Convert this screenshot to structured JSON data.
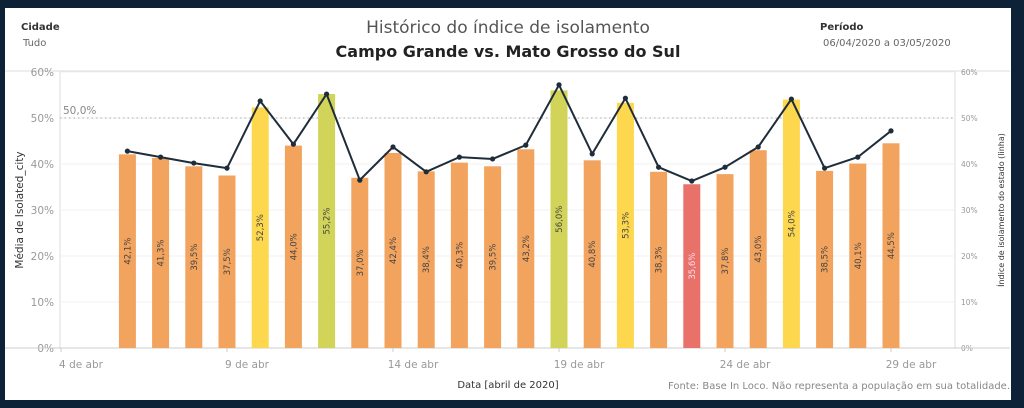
{
  "filters": {
    "cidade_label": "Cidade",
    "cidade_value": "Tudo",
    "periodo_label": "Período",
    "periodo_value": "06/04/2020 a 03/05/2020"
  },
  "chart_data": {
    "type": "bar",
    "title": "Histórico do índice de isolamento",
    "subtitle": "Campo Grande vs. Mato Grosso do Sul",
    "xlabel": "Data [abril de 2020]",
    "ylabel": "Média de Isolated_city",
    "y2label": "Índice de isolamento do estado (linha)",
    "ylim": [
      0,
      60
    ],
    "y2lim": [
      0,
      60
    ],
    "yticks": [
      "0%",
      "10%",
      "20%",
      "30%",
      "40%",
      "50%",
      "60%"
    ],
    "xtick_days": [
      4,
      9,
      14,
      19,
      24,
      29
    ],
    "xticks": [
      "4 de abr",
      "9 de abr",
      "14 de abr",
      "19 de abr",
      "24 de abr",
      "29 de abr"
    ],
    "x_range_days": [
      4,
      31
    ],
    "reference_line": {
      "value": 50,
      "label": "50,0%"
    },
    "categories": [
      6,
      7,
      8,
      9,
      10,
      11,
      12,
      13,
      14,
      15,
      16,
      17,
      18,
      19,
      20,
      21,
      22,
      23,
      24,
      25,
      26,
      27,
      28,
      29
    ],
    "series": [
      {
        "type": "bar",
        "values": [
          42.1,
          41.3,
          39.5,
          37.5,
          52.3,
          44.0,
          55.2,
          37.0,
          42.4,
          38.4,
          40.3,
          39.5,
          43.2,
          56.0,
          40.8,
          53.3,
          38.3,
          35.6,
          37.8,
          43.0,
          54.0,
          38.5,
          40.1,
          44.5
        ],
        "labels": [
          "42,1%",
          "41,3%",
          "39,5%",
          "37,5%",
          "52,3%",
          "44,0%",
          "55,2%",
          "37,0%",
          "42,4%",
          "38,4%",
          "40,3%",
          "39,5%",
          "43,2%",
          "56,0%",
          "40,8%",
          "53,3%",
          "38,3%",
          "35,6%",
          "37,8%",
          "43,0%",
          "54,0%",
          "38,5%",
          "40,1%",
          "44,5%"
        ]
      },
      {
        "type": "line",
        "axis": "right",
        "values": [
          42.8,
          41.5,
          40.2,
          39.1,
          53.7,
          44.3,
          55.2,
          36.5,
          43.7,
          38.3,
          41.5,
          41.1,
          44.1,
          57.2,
          42.2,
          54.3,
          39.3,
          36.3,
          39.3,
          43.7,
          54.1,
          39.1,
          41.5,
          47.2
        ]
      }
    ],
    "colors": {
      "low": "#e8716a",
      "mid": "#f2a35e",
      "high": "#fdd74e",
      "top": "#d2d45a",
      "line": "#1f2d3a"
    },
    "grid": true,
    "footnote": "Fonte: Base In Loco. Não representa a população em sua totalidade."
  }
}
